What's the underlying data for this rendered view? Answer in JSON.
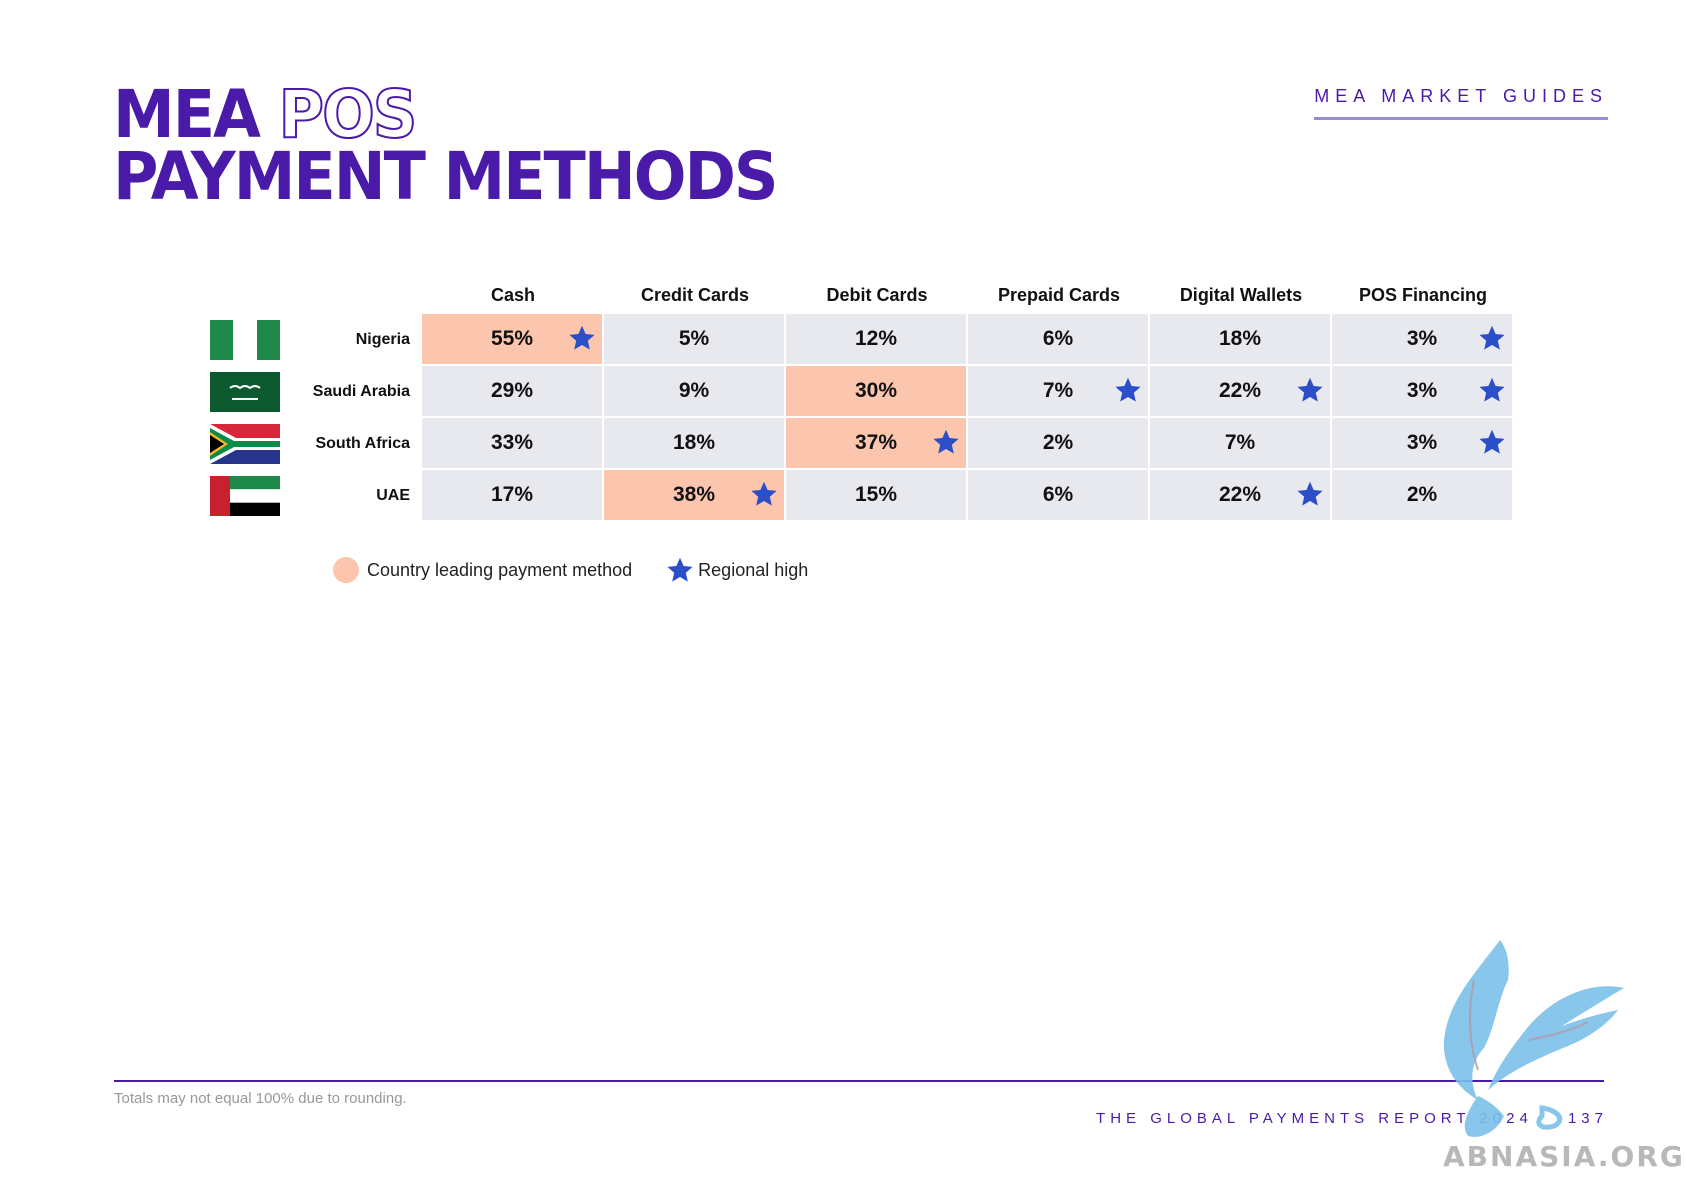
{
  "header": {
    "title_word1": "MEA",
    "title_word2": "POS",
    "title_line2": "PAYMENT METHODS",
    "section_label": "MEA MARKET GUIDES"
  },
  "table": {
    "columns": [
      "Cash",
      "Credit Cards",
      "Debit Cards",
      "Prepaid Cards",
      "Digital Wallets",
      "POS Financing"
    ],
    "rows": [
      {
        "country": "Nigeria",
        "flag_icon": "nigeria-flag-icon",
        "values": [
          "55%",
          "5%",
          "12%",
          "6%",
          "18%",
          "3%"
        ],
        "leading": [
          true,
          false,
          false,
          false,
          false,
          false
        ],
        "regional_high": [
          true,
          false,
          false,
          false,
          false,
          true
        ]
      },
      {
        "country": "Saudi Arabia",
        "flag_icon": "saudi-arabia-flag-icon",
        "values": [
          "29%",
          "9%",
          "30%",
          "7%",
          "22%",
          "3%"
        ],
        "leading": [
          false,
          false,
          true,
          false,
          false,
          false
        ],
        "regional_high": [
          false,
          false,
          false,
          true,
          true,
          true
        ]
      },
      {
        "country": "South Africa",
        "flag_icon": "south-africa-flag-icon",
        "values": [
          "33%",
          "18%",
          "37%",
          "2%",
          "7%",
          "3%"
        ],
        "leading": [
          false,
          false,
          true,
          false,
          false,
          false
        ],
        "regional_high": [
          false,
          false,
          true,
          false,
          false,
          true
        ]
      },
      {
        "country": "UAE",
        "flag_icon": "uae-flag-icon",
        "values": [
          "17%",
          "38%",
          "15%",
          "6%",
          "22%",
          "2%"
        ],
        "leading": [
          false,
          true,
          false,
          false,
          false,
          false
        ],
        "regional_high": [
          false,
          true,
          false,
          false,
          true,
          false
        ]
      }
    ]
  },
  "legend": {
    "leading_label": "Country leading payment method",
    "high_label": "Regional high"
  },
  "footer": {
    "note": "Totals may not equal 100% due to rounding.",
    "report": "THE GLOBAL PAYMENTS REPORT 2024",
    "page_number": "137"
  },
  "watermark": {
    "text": "ABNASIA.ORG"
  },
  "colors": {
    "brand_purple": "#4a1aa8",
    "leading_fill": "#fcc6ae",
    "cell_fill": "#e8e9ef",
    "star_blue": "#2b4fc9"
  }
}
